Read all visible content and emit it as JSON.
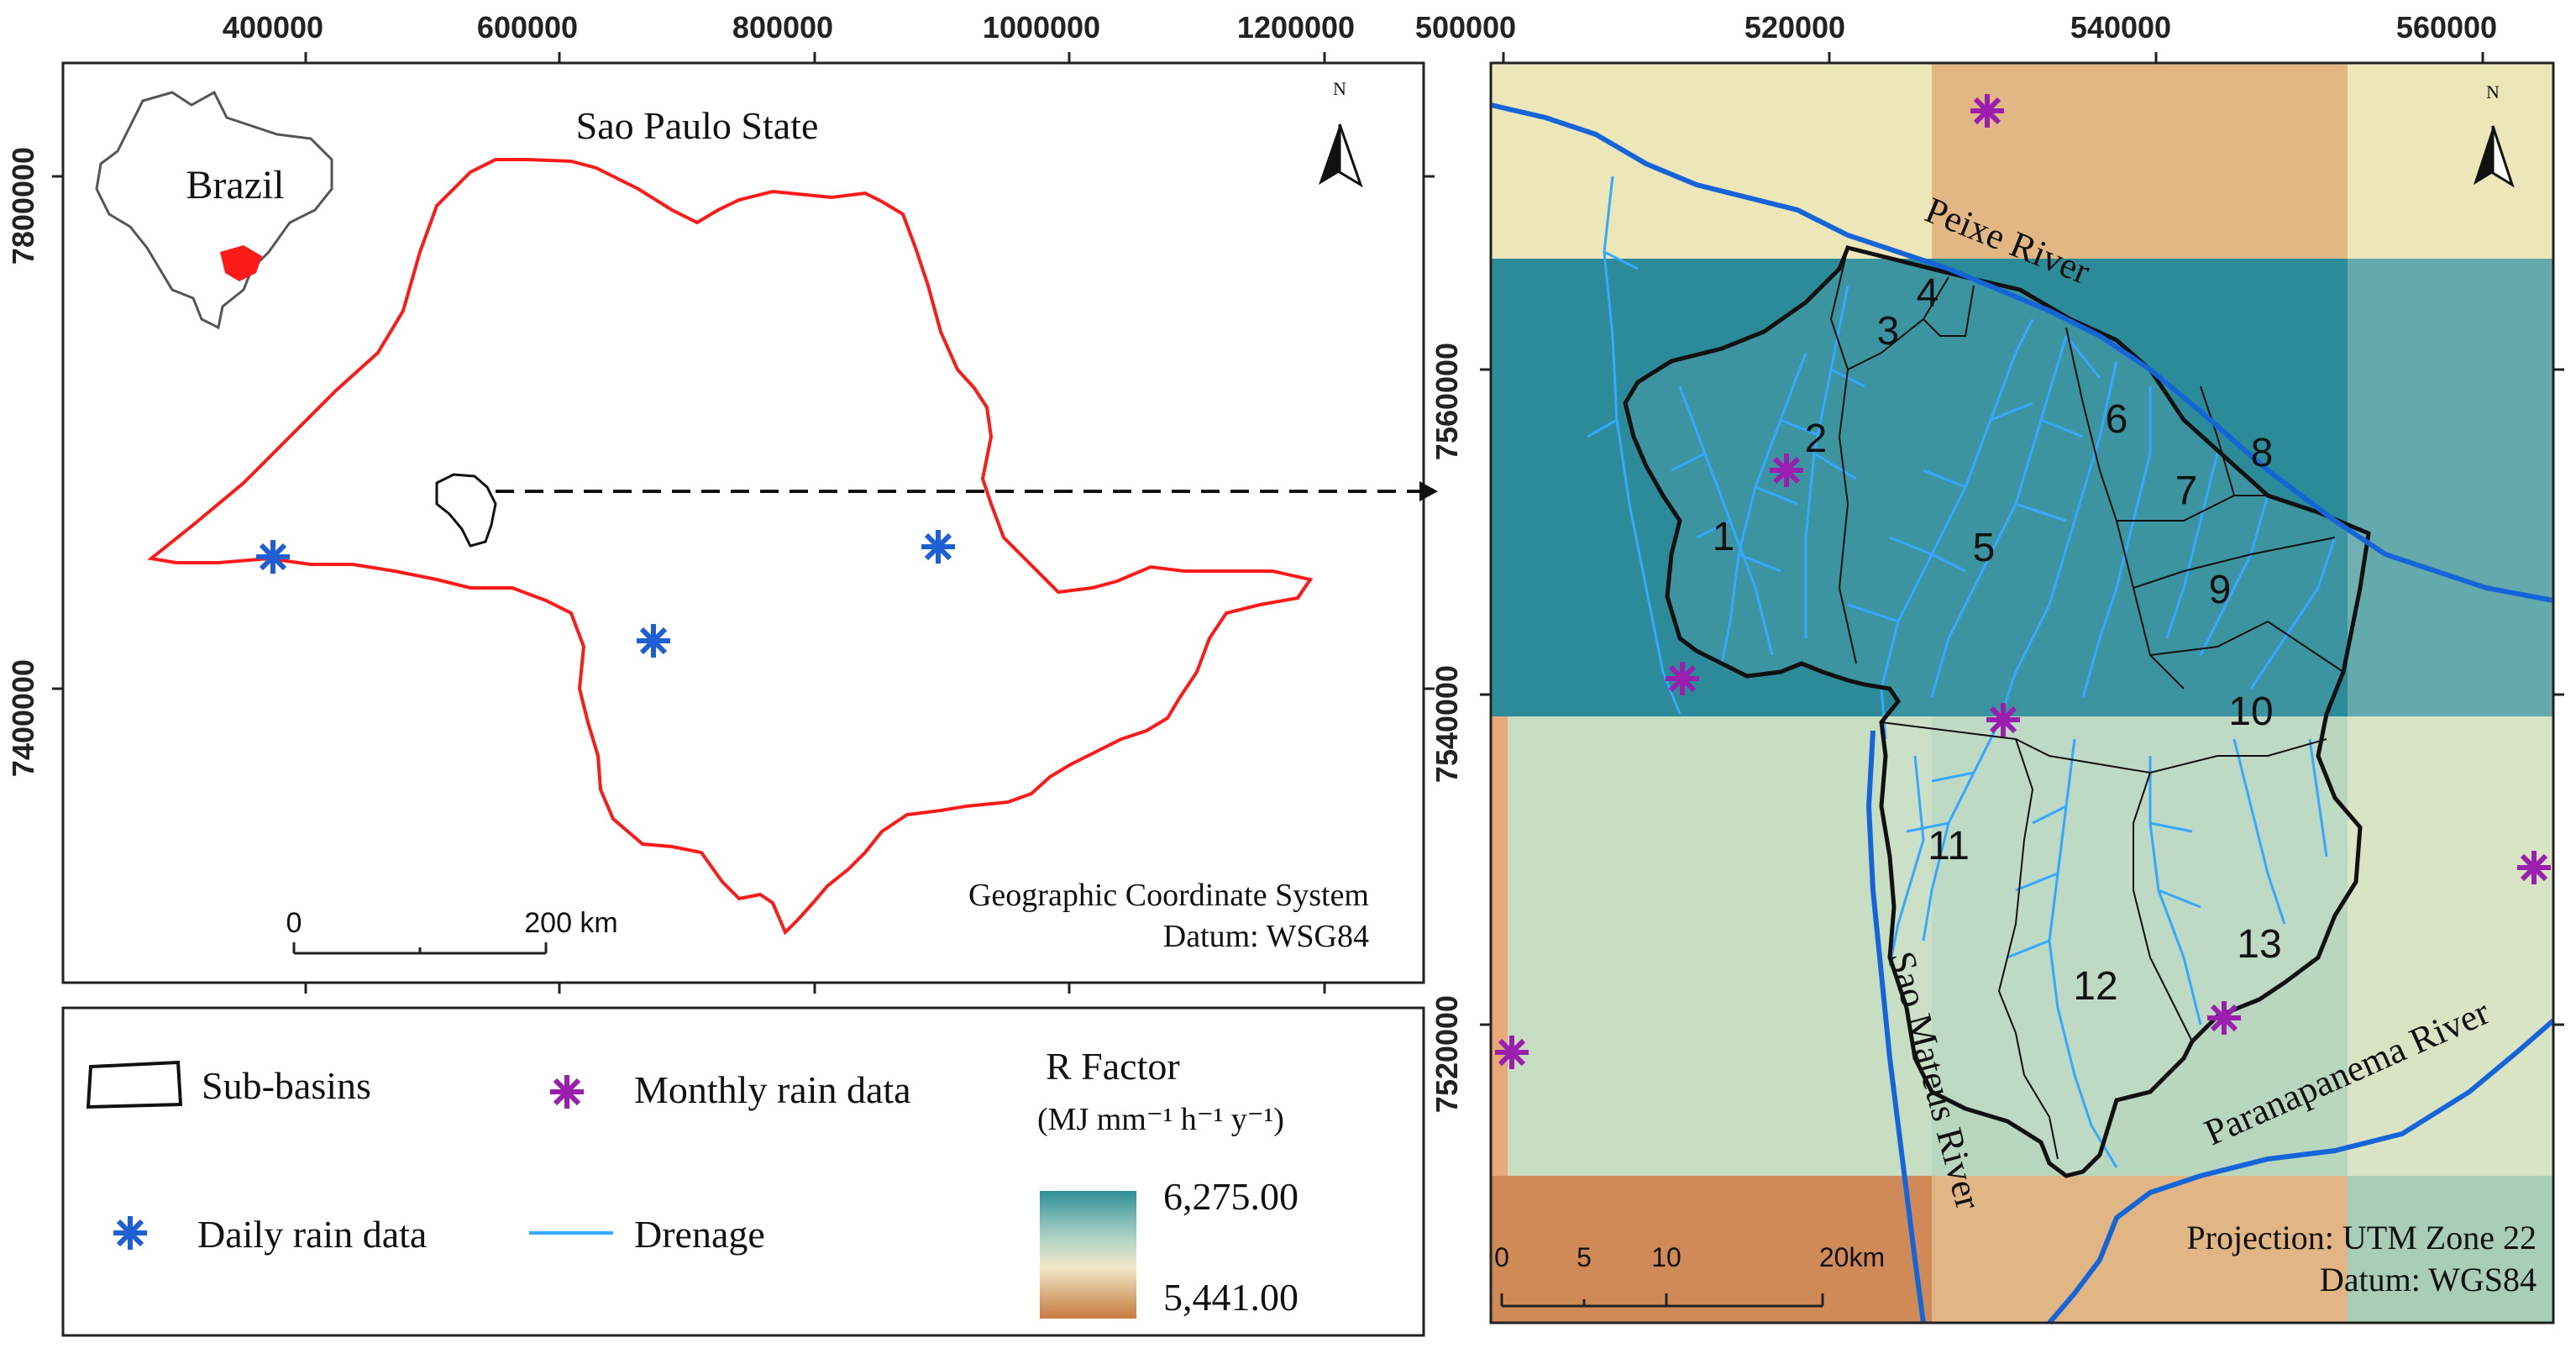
{
  "left_map": {
    "title": "Sao Paulo State",
    "inset_label": "Brazil",
    "north_label": "N",
    "x_ticks": [
      "400000",
      "600000",
      "800000",
      "1000000",
      "1200000"
    ],
    "y_ticks": [
      "7800000",
      "7400000"
    ],
    "scale_zero": "0",
    "scale_end": "200 km",
    "crs_line1": "Geographic Coordinate System",
    "crs_line2": "Datum: WSG84"
  },
  "right_map": {
    "x_ticks": [
      "500000",
      "520000",
      "540000",
      "560000"
    ],
    "y_ticks": [
      "7560000",
      "7540000",
      "7520000"
    ],
    "north_label": "N",
    "subbasin_labels": [
      "1",
      "2",
      "3",
      "4",
      "5",
      "6",
      "7",
      "8",
      "9",
      "10",
      "11",
      "12",
      "13"
    ],
    "river_peixe": "Peixe River",
    "river_sao_mateus": "Sao Mateus River",
    "river_paranapanema": "Paranapanema River",
    "scale_ticks": [
      "0",
      "5",
      "10",
      "20km"
    ],
    "projection_line1": "Projection: UTM Zone 22",
    "projection_line2": "Datum: WGS84"
  },
  "legend": {
    "subbasins": "Sub-basins",
    "monthly": "Monthly rain data",
    "daily": "Daily rain data",
    "drainage": "Drenage",
    "r_title": "R Factor",
    "r_units": "(MJ mm⁻¹ h⁻¹ y⁻¹)",
    "r_max": "6,275.00",
    "r_min": "5,441.00"
  },
  "colors": {
    "state_outline": "#ff1a1a",
    "daily_marker": "#1f5fd6",
    "monthly_marker": "#9b1fae",
    "drainage": "#35a8ff",
    "river": "#1565d8",
    "r_high": "#2e8f96",
    "r_low": "#c77a3e"
  }
}
